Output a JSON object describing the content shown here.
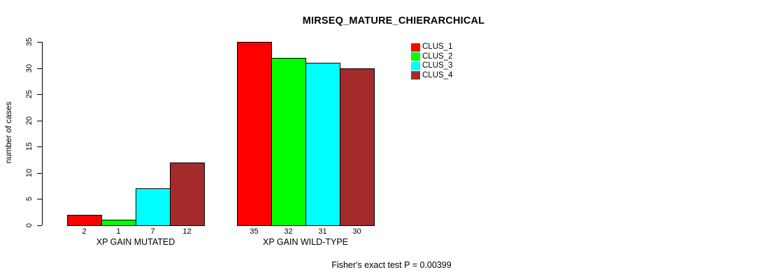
{
  "chart_data": {
    "type": "bar",
    "title": "MIRSEQ_MATURE_CHIERARCHICAL",
    "ylabel": "number of cases",
    "xlabel": "",
    "ylim": [
      0,
      35
    ],
    "yticks": [
      0,
      5,
      10,
      15,
      20,
      25,
      30,
      35
    ],
    "grid": false,
    "legend_position": "top-right-inside",
    "categories": [
      "XP GAIN MUTATED",
      "XP GAIN WILD-TYPE"
    ],
    "series": [
      {
        "name": "CLUS_1",
        "color": "#FF0000",
        "values": [
          2,
          35
        ]
      },
      {
        "name": "CLUS_2",
        "color": "#00FF00",
        "values": [
          1,
          32
        ]
      },
      {
        "name": "CLUS_3",
        "color": "#00FFFF",
        "values": [
          7,
          31
        ]
      },
      {
        "name": "CLUS_4",
        "color": "#A52A2A",
        "values": [
          12,
          30
        ]
      }
    ],
    "bar_value_labels_shown": true,
    "annotation": "Fisher's exact test P = 0.00399",
    "colors": {
      "background": "#FFFFFF",
      "axis": "#000000",
      "text": "#000000"
    }
  }
}
